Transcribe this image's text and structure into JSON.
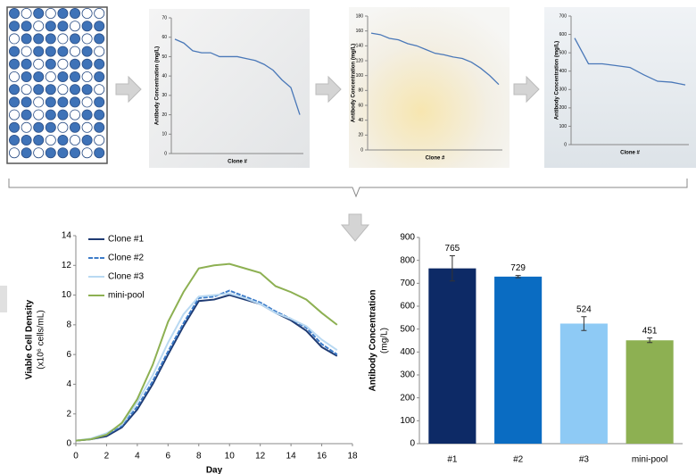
{
  "chart_data": [
    {
      "type": "line",
      "xlabel": "Clone #",
      "ylabel": "Antibody Concentration (mg/L)",
      "categories": [
        null,
        null,
        null,
        null,
        null,
        null,
        null,
        null,
        null,
        null,
        null,
        null,
        null,
        null,
        null
      ],
      "values": [
        59,
        57,
        53,
        52,
        52,
        50,
        50,
        50,
        49,
        48,
        46,
        43,
        38,
        34,
        20
      ],
      "color": "#4a78b8",
      "ylim": [
        0,
        70
      ],
      "yticks": [
        0,
        10,
        20,
        30,
        40,
        50,
        60,
        70
      ]
    },
    {
      "type": "line",
      "xlabel": "Clone #",
      "ylabel": "Antibody Concentration (mg/L)",
      "categories": [
        null,
        null,
        null,
        null,
        null,
        null,
        null,
        null,
        null,
        null,
        null,
        null,
        null,
        null,
        null
      ],
      "values": [
        157,
        155,
        150,
        148,
        143,
        140,
        135,
        130,
        128,
        125,
        123,
        118,
        110,
        100,
        88
      ],
      "color": "#4a78b8",
      "ylim": [
        0,
        180
      ],
      "yticks": [
        0,
        20,
        40,
        60,
        80,
        100,
        120,
        140,
        160,
        180
      ]
    },
    {
      "type": "line",
      "xlabel": "Clone #",
      "ylabel": "Antibody Concentration (mg/L)",
      "categories": [
        null,
        null,
        null,
        null,
        null,
        null,
        null,
        null,
        null
      ],
      "values": [
        580,
        440,
        440,
        430,
        420,
        380,
        345,
        340,
        325
      ],
      "color": "#4a78b8",
      "ylim": [
        0,
        700
      ],
      "yticks": [
        0,
        100,
        200,
        300,
        400,
        500,
        600,
        700
      ]
    },
    {
      "type": "line",
      "xlabel": "Day",
      "ylabel": "Viable Cell Density",
      "ylabel2": "(x10⁶ cells/mL)",
      "x": [
        0,
        1,
        2,
        3,
        4,
        5,
        6,
        7,
        8,
        9,
        10,
        11,
        12,
        13,
        14,
        15,
        16,
        17
      ],
      "series": [
        {
          "name": "Clone #1",
          "color": "#1f3b73",
          "values": [
            0.2,
            0.3,
            0.5,
            1.1,
            2.3,
            4.0,
            6.0,
            7.9,
            9.6,
            9.7,
            10.0,
            9.7,
            9.4,
            8.8,
            8.3,
            7.6,
            6.5,
            5.9
          ]
        },
        {
          "name": "Clone #2",
          "color": "#3d7cc9",
          "values": [
            0.2,
            0.3,
            0.6,
            1.2,
            2.5,
            4.2,
            6.2,
            8.1,
            9.8,
            9.9,
            10.3,
            9.9,
            9.5,
            8.9,
            8.4,
            7.8,
            6.7,
            6.0
          ]
        },
        {
          "name": "Clone #3",
          "color": "#b9d9f2",
          "values": [
            0.2,
            0.35,
            0.7,
            1.3,
            2.8,
            4.6,
            6.8,
            8.7,
            9.9,
            10.0,
            10.1,
            9.8,
            9.4,
            8.8,
            8.4,
            7.9,
            7.0,
            6.3
          ]
        },
        {
          "name": "mini-pool",
          "color": "#8db052",
          "values": [
            0.2,
            0.3,
            0.6,
            1.4,
            3.0,
            5.3,
            8.2,
            10.2,
            11.8,
            12.0,
            12.1,
            11.8,
            11.5,
            10.6,
            10.2,
            9.7,
            8.8,
            8.0
          ]
        }
      ],
      "xlim": [
        0,
        18
      ],
      "xticks": [
        0,
        2,
        4,
        6,
        8,
        10,
        12,
        14,
        16,
        18
      ],
      "ylim": [
        0,
        14
      ],
      "yticks": [
        0,
        2,
        4,
        6,
        8,
        10,
        12,
        14
      ],
      "legend": "upper-left"
    },
    {
      "type": "bar",
      "ylabel": "Antibody Concentration",
      "ylabel2": "(mg/L)",
      "categories": [
        "#1",
        "#2",
        "#3",
        "mini-pool"
      ],
      "values": [
        765,
        729,
        524,
        451
      ],
      "errors": [
        55,
        5,
        30,
        10
      ],
      "colors": [
        "#0d2a66",
        "#0a6cc2",
        "#8ecaf5",
        "#8db052"
      ],
      "ylim": [
        0,
        900
      ],
      "yticks": [
        0,
        100,
        200,
        300,
        400,
        500,
        600,
        700,
        800,
        900
      ]
    }
  ]
}
